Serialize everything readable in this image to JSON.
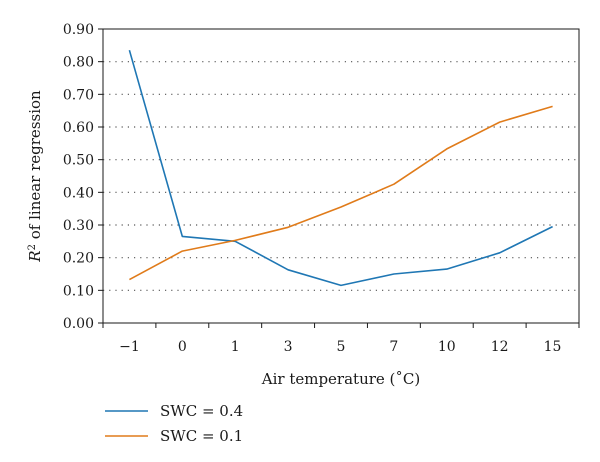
{
  "chart_data": {
    "type": "line",
    "categories": [
      "−1",
      "0",
      "1",
      "3",
      "5",
      "7",
      "10",
      "12",
      "15"
    ],
    "series": [
      {
        "name": "SWC = 0.4",
        "color": "#1f77b4",
        "values": [
          0.835,
          0.265,
          0.25,
          0.163,
          0.115,
          0.15,
          0.165,
          0.215,
          0.295
        ]
      },
      {
        "name": "SWC = 0.1",
        "color": "#e07b1a",
        "values": [
          0.133,
          0.22,
          0.253,
          0.293,
          0.355,
          0.425,
          0.533,
          0.615,
          0.663
        ]
      }
    ],
    "xlabel": "Air temperature (˚C)",
    "ylabel_superscript": "2",
    "ylabel_prefix": "R",
    "ylabel_rest": " of linear regression",
    "ylim": [
      0,
      0.9
    ],
    "yticks": [
      "0.00",
      "0.10",
      "0.20",
      "0.30",
      "0.40",
      "0.50",
      "0.60",
      "0.70",
      "0.80",
      "0.90"
    ],
    "grid": "horizontal-dotted",
    "legend_position": "bottom-left"
  }
}
